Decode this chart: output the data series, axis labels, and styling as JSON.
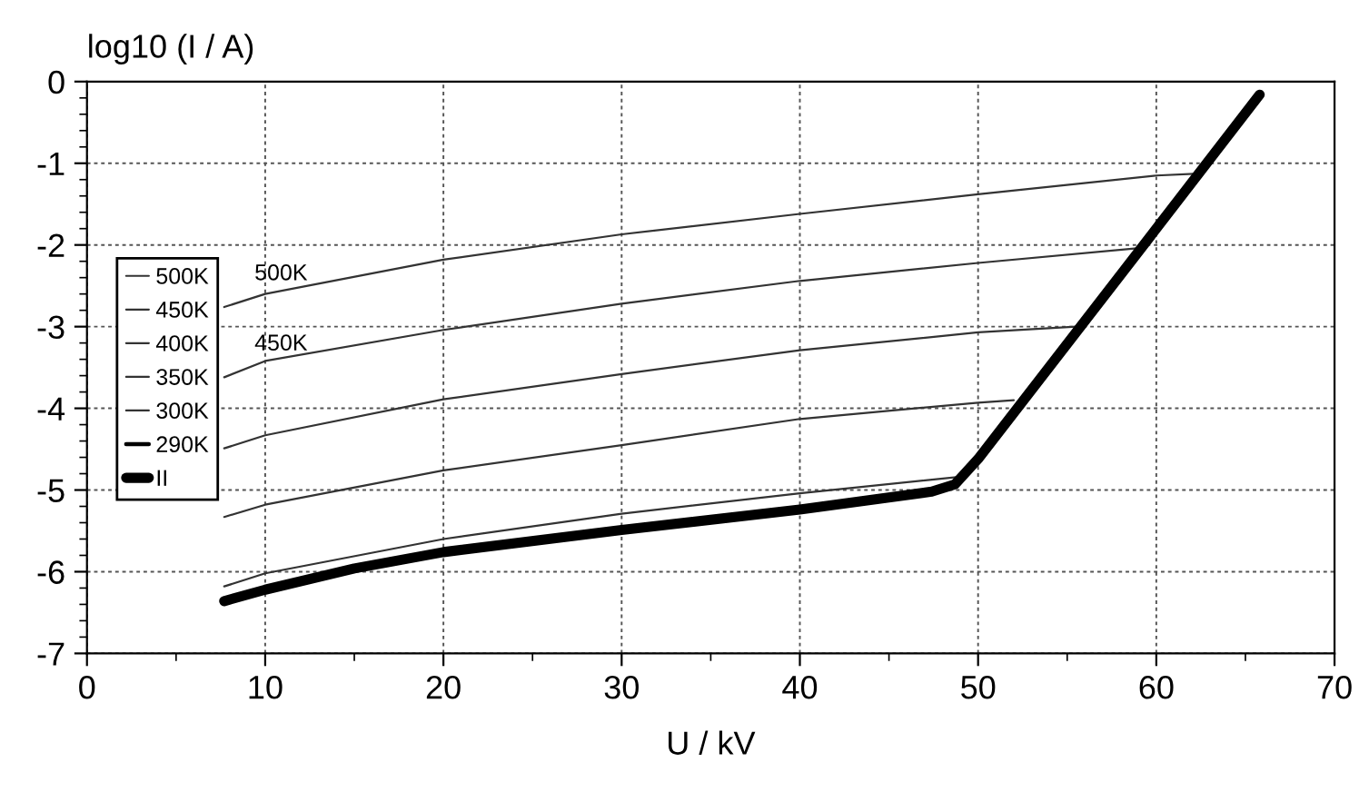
{
  "chart_data": {
    "type": "line",
    "xlabel": "U / kV",
    "ylabel": "log10 (I / A)",
    "xlim": [
      0,
      70
    ],
    "ylim": [
      -7,
      0
    ],
    "xticks": [
      0,
      10,
      20,
      30,
      40,
      50,
      60,
      70
    ],
    "yticks": [
      -7,
      -6,
      -5,
      -4,
      -3,
      -2,
      -1,
      0
    ],
    "grid": true,
    "legend": "left",
    "line_style": "solid",
    "marker": "none",
    "annotations": [
      "500K",
      "450K"
    ],
    "series": [
      {
        "name": "500K",
        "color": "#333333",
        "x": [
          7.7,
          10,
          20,
          30,
          40,
          50,
          60,
          62.1
        ],
        "values": [
          -2.76,
          -2.6,
          -2.18,
          -1.87,
          -1.62,
          -1.38,
          -1.15,
          -1.13
        ]
      },
      {
        "name": "450K",
        "color": "#333333",
        "x": [
          7.7,
          10,
          20,
          30,
          40,
          50,
          58.9
        ],
        "values": [
          -3.62,
          -3.42,
          -3.04,
          -2.72,
          -2.44,
          -2.22,
          -2.04
        ]
      },
      {
        "name": "400K",
        "color": "#333333",
        "x": [
          7.7,
          10,
          20,
          30,
          40,
          50,
          55.5
        ],
        "values": [
          -4.49,
          -4.33,
          -3.89,
          -3.58,
          -3.29,
          -3.07,
          -3.0
        ]
      },
      {
        "name": "350K",
        "color": "#333333",
        "x": [
          7.7,
          10,
          20,
          30,
          40,
          50,
          52.0
        ],
        "values": [
          -5.33,
          -5.18,
          -4.76,
          -4.45,
          -4.13,
          -3.93,
          -3.9
        ]
      },
      {
        "name": "300K",
        "color": "#333333",
        "x": [
          7.7,
          10,
          20,
          30,
          40,
          48.9
        ],
        "values": [
          -6.18,
          -6.02,
          -5.6,
          -5.29,
          -5.04,
          -4.84
        ]
      },
      {
        "name": "290K",
        "color": "#000000"
      },
      {
        "name": "II",
        "color": "#000000",
        "x": [
          7.7,
          10,
          15,
          20,
          30,
          40,
          47.4,
          48.7,
          50,
          60,
          65.8
        ],
        "values": [
          -6.36,
          -6.22,
          -5.96,
          -5.76,
          -5.49,
          -5.24,
          -5.02,
          -4.93,
          -4.62,
          -1.8,
          -0.16
        ]
      }
    ]
  }
}
